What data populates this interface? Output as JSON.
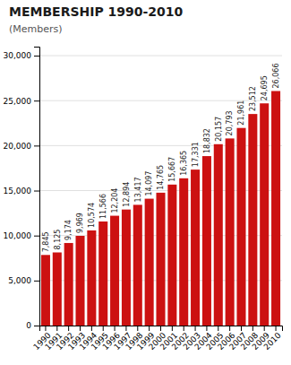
{
  "chart_data": {
    "type": "bar",
    "title": "MEMBERSHIP 1990-2010",
    "subtitle": "(Members)",
    "categories": [
      "1990",
      "1991",
      "1992",
      "1993",
      "1994",
      "1995",
      "1996",
      "1997",
      "1998",
      "1999",
      "2000",
      "2001",
      "2002",
      "2003",
      "2004",
      "2005",
      "2006",
      "2007",
      "2008",
      "2009",
      "2010"
    ],
    "values": [
      7845,
      8125,
      9174,
      9969,
      10574,
      11566,
      12204,
      12894,
      13417,
      14097,
      14765,
      15667,
      16365,
      17331,
      18832,
      20157,
      20793,
      21961,
      23512,
      24695,
      26066
    ],
    "value_labels": [
      "7,845",
      "8,125",
      "9,174",
      "9,969",
      "10,574",
      "11,566",
      "12,204",
      "12,894",
      "13,417",
      "14,097",
      "14,765",
      "15,667",
      "16,365",
      "17,331",
      "18,832",
      "20,157",
      "20,793",
      "21,961",
      "23,512",
      "24,695",
      "26,066"
    ],
    "data_labels": true,
    "color": "#cc1111",
    "ylim": [
      0,
      31000
    ],
    "yticks": [
      0,
      {
        "value": 5000,
        "label": "5,000"
      },
      {
        "value": 10000,
        "label": "10,000"
      },
      {
        "value": 15000,
        "label": "15,000"
      },
      {
        "value": 20000,
        "label": "20,000"
      },
      {
        "value": 25000,
        "label": "25,000"
      },
      {
        "value": 30000,
        "label": "30,000"
      }
    ],
    "grid": true
  }
}
